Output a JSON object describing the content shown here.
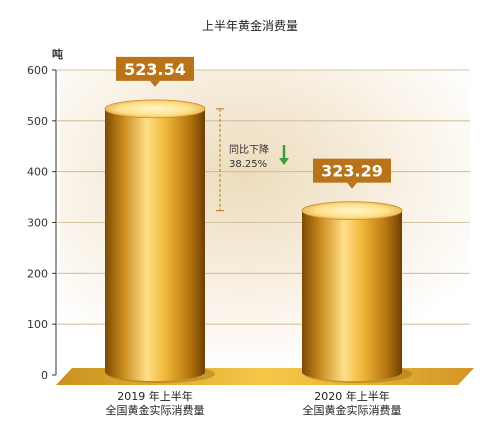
{
  "chart_data": {
    "type": "bar",
    "title": "上半年黄金消费量",
    "unit": "吨",
    "ylim": [
      0,
      600
    ],
    "yticks": [
      "0",
      "100",
      "200",
      "300",
      "400",
      "500",
      "600"
    ],
    "grid": true,
    "categories": [
      [
        "2019 年上半年",
        "全国黄金实际消费量"
      ],
      [
        "2020 年上半年",
        "全国黄金实际消费量"
      ]
    ],
    "values": [
      523.54,
      323.29
    ],
    "value_labels": [
      "523.54",
      "323.29"
    ],
    "annotation": {
      "line1": "同比下降",
      "line2": "38.25%"
    },
    "colors": {
      "bar_dark": "#7a4a06",
      "bar_mid": "#f2b83a",
      "bar_light": "#ffe9a0",
      "label_bg": "#b9741a",
      "arrow": "#3aa23a",
      "grid": "#c9b48a"
    }
  }
}
